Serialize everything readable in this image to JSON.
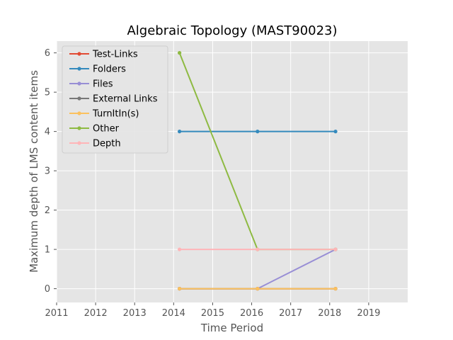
{
  "chart_data": {
    "type": "line",
    "title": "Algebraic Topology (MAST90023)",
    "xlabel": "Time Period",
    "ylabel": "Maximum depth of LMS content items",
    "xlim": [
      2011,
      2020
    ],
    "ylim": [
      -0.35,
      6.3
    ],
    "x_ticks": [
      "2011",
      "2012",
      "2013",
      "2014",
      "2015",
      "2016",
      "2017",
      "2018",
      "2019"
    ],
    "y_ticks": [
      "0",
      "1",
      "2",
      "3",
      "4",
      "5",
      "6"
    ],
    "grid": true,
    "legend_position": "top-left",
    "x": [
      2014.15,
      2016.15,
      2018.15
    ],
    "series": [
      {
        "name": "Test-Links",
        "color": "#e24a33",
        "values": [
          0,
          0,
          0
        ]
      },
      {
        "name": "Folders",
        "color": "#348abd",
        "values": [
          4,
          4,
          4
        ]
      },
      {
        "name": "Files",
        "color": "#988ed5",
        "values": [
          0,
          0,
          1
        ]
      },
      {
        "name": "External Links",
        "color": "#777777",
        "values": [
          0,
          0,
          0
        ]
      },
      {
        "name": "TurnItIn(s)",
        "color": "#fbc15e",
        "values": [
          0,
          0,
          0
        ]
      },
      {
        "name": "Other",
        "color": "#8eba42",
        "values": [
          6,
          1,
          1
        ]
      },
      {
        "name": "Depth",
        "color": "#ffb5b8",
        "values": [
          1,
          1,
          1
        ]
      }
    ]
  }
}
